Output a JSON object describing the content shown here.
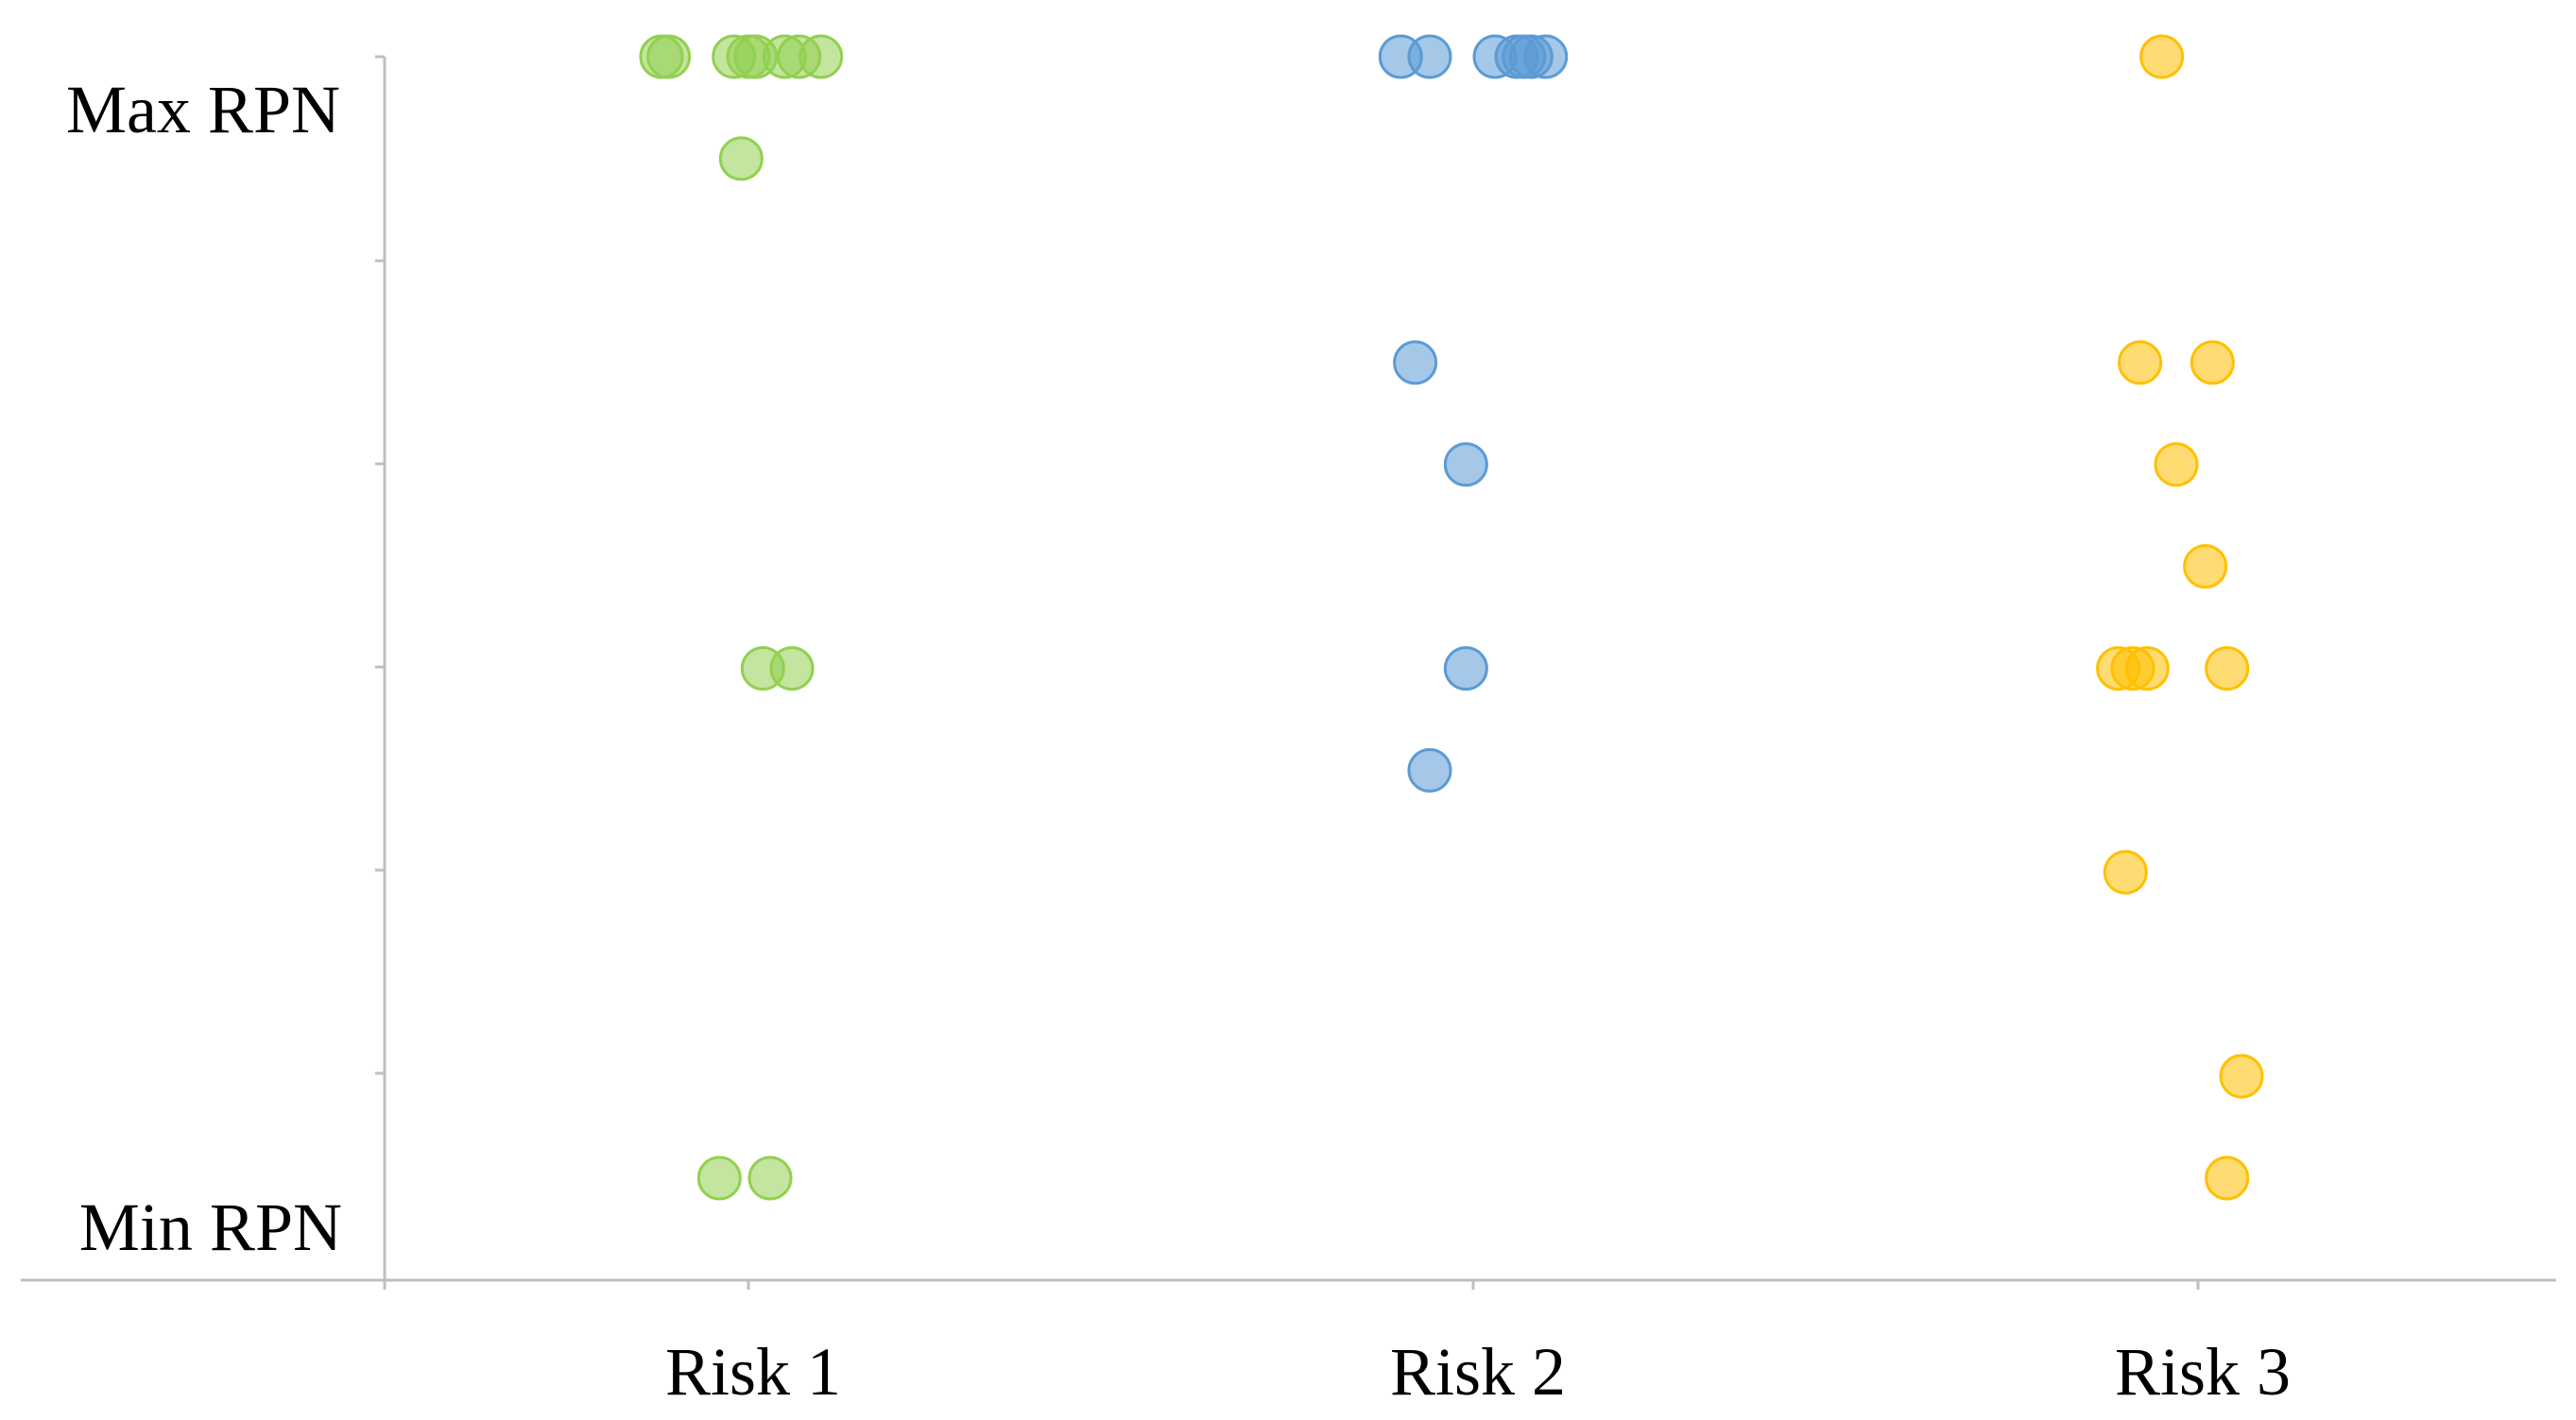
{
  "chart_data": {
    "type": "scatter",
    "title": "",
    "xlabel": "",
    "ylabel": "",
    "categories": [
      "Risk 1",
      "Risk 2",
      "Risk 3"
    ],
    "y_tick_labels": {
      "max": "Max RPN",
      "min": "Min RPN"
    },
    "ylim": [
      0,
      12
    ],
    "y_tick_count": 6,
    "grid": false,
    "legend": "none",
    "series": [
      {
        "category": "Risk 1",
        "color": "#92d050",
        "points": [
          {
            "x": 0.88,
            "y": 12
          },
          {
            "x": 0.89,
            "y": 12
          },
          {
            "x": 0.98,
            "y": 12
          },
          {
            "x": 1.0,
            "y": 12
          },
          {
            "x": 1.01,
            "y": 12
          },
          {
            "x": 1.05,
            "y": 12
          },
          {
            "x": 1.07,
            "y": 12
          },
          {
            "x": 1.1,
            "y": 12
          },
          {
            "x": 0.99,
            "y": 11
          },
          {
            "x": 1.02,
            "y": 6
          },
          {
            "x": 1.06,
            "y": 6
          },
          {
            "x": 0.96,
            "y": 1
          },
          {
            "x": 1.03,
            "y": 1
          }
        ]
      },
      {
        "category": "Risk 2",
        "color": "#5b9bd5",
        "points": [
          {
            "x": 1.9,
            "y": 12
          },
          {
            "x": 1.94,
            "y": 12
          },
          {
            "x": 2.03,
            "y": 12
          },
          {
            "x": 2.06,
            "y": 12
          },
          {
            "x": 2.07,
            "y": 12
          },
          {
            "x": 2.08,
            "y": 12
          },
          {
            "x": 2.1,
            "y": 12
          },
          {
            "x": 1.92,
            "y": 9
          },
          {
            "x": 1.99,
            "y": 8
          },
          {
            "x": 1.99,
            "y": 6
          },
          {
            "x": 1.94,
            "y": 5
          }
        ]
      },
      {
        "category": "Risk 3",
        "color": "#ffc000",
        "points": [
          {
            "x": 2.95,
            "y": 12
          },
          {
            "x": 2.92,
            "y": 9
          },
          {
            "x": 3.02,
            "y": 9
          },
          {
            "x": 2.97,
            "y": 8
          },
          {
            "x": 3.01,
            "y": 7
          },
          {
            "x": 2.89,
            "y": 6
          },
          {
            "x": 2.91,
            "y": 6
          },
          {
            "x": 2.93,
            "y": 6
          },
          {
            "x": 3.04,
            "y": 6
          },
          {
            "x": 2.9,
            "y": 4
          },
          {
            "x": 3.06,
            "y": 2
          },
          {
            "x": 3.04,
            "y": 1
          }
        ]
      }
    ]
  }
}
